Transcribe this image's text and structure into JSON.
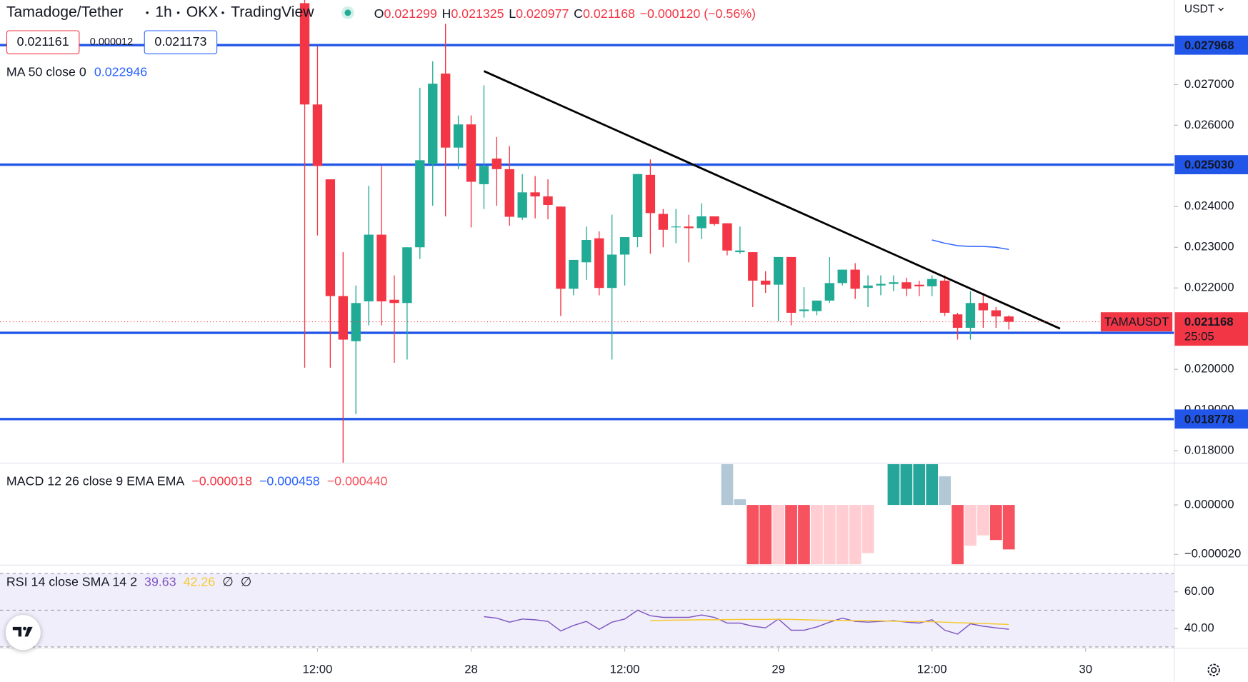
{
  "header": {
    "parts": [
      "Tamadoge/Tether",
      "1h",
      "OKX",
      "TradingView"
    ],
    "bid": 0.021161,
    "spread": 1.2e-05,
    "ask": 0.021173,
    "currency": "USDT"
  },
  "chart_data": [
    {
      "type": "candlestick",
      "up_color": "#22ab94",
      "down_color": "#f23645",
      "legend_names": [
        "O",
        "H",
        "L",
        "C"
      ],
      "change": {
        "value": -0.00012,
        "label": "−0.000120 (−0.56%)"
      },
      "symbol_badge": "TAMAUSDT",
      "countdown": "25:05",
      "xlim": [
        -24.8,
        66.9
      ],
      "xticks": [
        {
          "value": 0,
          "label": "12:00"
        },
        {
          "value": 12,
          "label": "28"
        },
        {
          "value": 24,
          "label": "12:00"
        },
        {
          "value": 36,
          "label": "29"
        },
        {
          "value": 48,
          "label": "12:00"
        },
        {
          "value": 60,
          "label": "30"
        }
      ],
      "ylim": [
        0.017706,
        0.029078
      ],
      "yticks": [
        {
          "value": 0.027,
          "label": "0.027000"
        },
        {
          "value": 0.026,
          "label": "0.026000"
        },
        {
          "value": 0.024,
          "label": "0.024000"
        },
        {
          "value": 0.023,
          "label": "0.023000"
        },
        {
          "value": 0.022,
          "label": "0.022000"
        },
        {
          "value": 0.02,
          "label": "0.020000"
        },
        {
          "value": 0.019,
          "label": "0.019000"
        },
        {
          "value": 0.018,
          "label": "0.018000"
        }
      ],
      "levels": [
        0.027968,
        {
          "value": 0.02503,
          "label": "0.025030"
        },
        0.020896,
        0.018778
      ],
      "level_color": "#2156e8",
      "x": [
        -1,
        0,
        1,
        2,
        3,
        4,
        5,
        6,
        7,
        8,
        9,
        10,
        11,
        12,
        13,
        14,
        15,
        16,
        17,
        18,
        19,
        20,
        21,
        22,
        23,
        24,
        25,
        26,
        27,
        28,
        29,
        30,
        31,
        32,
        33,
        34,
        35,
        36,
        37,
        38,
        39,
        40,
        41,
        42,
        43,
        44,
        45,
        46,
        47,
        48,
        49,
        50,
        51,
        52,
        53,
        54
      ],
      "open": [
        0.029,
        0.02651,
        0.02467,
        0.0218,
        0.02069,
        0.02167,
        0.02331,
        0.02171,
        0.02163,
        0.023,
        0.02504,
        0.02727,
        0.02545,
        0.02602,
        0.02455,
        0.02518,
        0.02492,
        0.02373,
        0.02435,
        0.02425,
        0.024,
        0.02198,
        0.02263,
        0.02322,
        0.022,
        0.02282,
        0.02325,
        0.02478,
        0.02382,
        0.02349,
        0.02351,
        0.02347,
        0.02376,
        0.02359,
        0.02288,
        0.02288,
        0.02218,
        0.02208,
        0.02276,
        0.02143,
        0.02143,
        0.02169,
        0.02212,
        0.02245,
        0.022,
        0.02206,
        0.0221,
        0.02214,
        0.02208,
        0.02204,
        0.02218,
        0.02135,
        0.02102,
        0.02163,
        0.02145,
        0.021299
      ],
      "high": [
        0.0291,
        0.02794,
        0.02467,
        0.02288,
        0.02206,
        0.02451,
        0.025,
        0.02231,
        0.023,
        0.02692,
        0.02757,
        0.02849,
        0.02624,
        0.02624,
        0.02698,
        0.02571,
        0.02549,
        0.0248,
        0.02475,
        0.02467,
        0.024,
        0.02269,
        0.02351,
        0.02339,
        0.0238,
        0.02325,
        0.0248,
        0.02516,
        0.02394,
        0.02394,
        0.0238,
        0.02408,
        0.02376,
        0.02359,
        0.02351,
        0.02288,
        0.02241,
        0.02276,
        0.02276,
        0.02202,
        0.02169,
        0.02276,
        0.02245,
        0.02261,
        0.02231,
        0.02231,
        0.02231,
        0.02225,
        0.02218,
        0.02231,
        0.02231,
        0.02139,
        0.02192,
        0.02188,
        0.02153,
        0.021325
      ],
      "low": [
        0.02004,
        0.02329,
        0.02004,
        0.0177,
        0.0189,
        0.02108,
        0.02108,
        0.02016,
        0.02024,
        0.02271,
        0.02402,
        0.02376,
        0.02492,
        0.02349,
        0.02394,
        0.02402,
        0.02353,
        0.02367,
        0.02371,
        0.02369,
        0.02131,
        0.02182,
        0.0222,
        0.02182,
        0.02024,
        0.02206,
        0.023,
        0.02284,
        0.023,
        0.0231,
        0.02263,
        0.0232,
        0.02353,
        0.0228,
        0.02284,
        0.02153,
        0.02188,
        0.02118,
        0.02108,
        0.02127,
        0.02133,
        0.02163,
        0.02206,
        0.02173,
        0.02153,
        0.02182,
        0.02192,
        0.0218,
        0.0218,
        0.0218,
        0.02131,
        0.02073,
        0.02073,
        0.02102,
        0.02102,
        0.020977
      ],
      "close": [
        0.02651,
        0.025,
        0.0218,
        0.02073,
        0.02163,
        0.02331,
        0.02167,
        0.02163,
        0.023,
        0.02514,
        0.02702,
        0.02545,
        0.02602,
        0.02461,
        0.025,
        0.02492,
        0.02375,
        0.02435,
        0.02425,
        0.02404,
        0.02198,
        0.02269,
        0.02318,
        0.022,
        0.02282,
        0.02325,
        0.0248,
        0.02384,
        0.02343,
        0.02351,
        0.02347,
        0.02376,
        0.02357,
        0.02292,
        0.02292,
        0.02218,
        0.02208,
        0.02276,
        0.02139,
        0.02147,
        0.02169,
        0.02212,
        0.02245,
        0.02198,
        0.02206,
        0.0221,
        0.02214,
        0.02198,
        0.02204,
        0.02222,
        0.02139,
        0.02102,
        0.02163,
        0.02145,
        0.0213,
        0.021168
      ],
      "trendline": {
        "x": [
          13,
          58
        ],
        "values": [
          0.02733,
          0.021
        ],
        "color": "#000000"
      },
      "ma": {
        "name": "MA 50 close 0",
        "color": "#2962ff",
        "x": [
          48,
          49,
          50,
          51,
          52,
          53,
          54
        ],
        "values": [
          0.02318,
          0.0231,
          0.02304,
          0.02302,
          0.02302,
          0.023,
          0.022946
        ]
      }
    },
    {
      "type": "histogram",
      "name": "MACD 12 26 close 9 EMA EMA",
      "legend_values": [
        {
          "value": -1.8e-05,
          "label": "−0.000018"
        },
        {
          "value": -0.000458,
          "label": "−0.000458"
        },
        {
          "value": -0.00044,
          "label": "−0.000440"
        }
      ],
      "legend_colors": [
        "#f23645",
        "#2962ff",
        "#f7525f"
      ],
      "ylim": [
        -2.42e-05,
        1.68e-05
      ],
      "yticks": [
        {
          "value": 0,
          "label": "0.000000"
        },
        {
          "value": -2e-05,
          "label": "−0.000020"
        }
      ],
      "x": [
        32,
        33,
        34,
        35,
        36,
        37,
        38,
        39,
        40,
        41,
        42,
        43,
        44,
        45,
        46,
        47,
        48,
        49,
        50,
        51,
        52,
        53,
        54
      ],
      "values": [
        1.65e-05,
        2.3e-06,
        -2.4e-05,
        -2.4e-05,
        -2.4e-05,
        -2.4e-05,
        -2.4e-05,
        -2.4e-05,
        -2.4e-05,
        -2.4e-05,
        -2.4e-05,
        -1.95e-05,
        null,
        1.65e-05,
        1.65e-05,
        1.65e-05,
        1.65e-05,
        1.16e-05,
        -2.4e-05,
        -1.65e-05,
        -1.23e-05,
        -1.42e-05,
        -1.8e-05
      ],
      "colors": [
        "#b2c8d6",
        "#b2c8d6",
        "#f7525f",
        "#f7525f",
        "#ffcdd2",
        "#f7525f",
        "#f7525f",
        "#ffcdd2",
        "#ffcdd2",
        "#ffcdd2",
        "#ffcdd2",
        "#ffcdd2",
        null,
        "#26a69a",
        "#26a69a",
        "#26a69a",
        "#26a69a",
        "#b2c8d6",
        "#f7525f",
        "#ffcdd2",
        "#ffcdd2",
        "#f7525f",
        "#f7525f"
      ]
    },
    {
      "type": "line",
      "name": "RSI 14 close SMA 14 2",
      "extras": [
        "∅",
        "∅"
      ],
      "ylim": [
        29.6,
        70.4
      ],
      "yticks": [
        {
          "value": 60,
          "label": "60.00"
        },
        {
          "value": 40,
          "label": "40.00"
        }
      ],
      "bands": [
        70,
        50,
        30
      ],
      "band_fill": "#f1eefb",
      "series": [
        {
          "color": "#7e57c2",
          "x": [
            13,
            14,
            15,
            16,
            17,
            18,
            19,
            20,
            21,
            22,
            23,
            24,
            25,
            26,
            27,
            28,
            29,
            30,
            31,
            32,
            33,
            34,
            35,
            36,
            37,
            38,
            39,
            40,
            41,
            42,
            43,
            44,
            45,
            46,
            47,
            48,
            49,
            50,
            51,
            52,
            53,
            54
          ],
          "values": [
            46.5,
            45.7,
            43.5,
            45.2,
            44.8,
            43.9,
            38.7,
            41.7,
            43.9,
            39.6,
            43.5,
            45.2,
            50,
            47,
            46.1,
            46.1,
            46.1,
            47.4,
            46.1,
            43,
            43,
            41.3,
            40.4,
            45.2,
            39.1,
            39.1,
            40.9,
            43.5,
            45.7,
            43.9,
            43.5,
            43.9,
            44.3,
            43.5,
            43,
            44.8,
            39.1,
            37,
            42.6,
            41.3,
            40.4,
            39.63
          ]
        },
        {
          "color": "#f5c92f",
          "x": [
            26,
            27,
            28,
            29,
            30,
            31,
            32,
            33,
            34,
            35,
            36,
            37,
            38,
            39,
            40,
            41,
            42,
            43,
            44,
            45,
            46,
            47,
            48,
            49,
            50,
            51,
            52,
            53,
            54
          ],
          "values": [
            44.3,
            44.5,
            44.6,
            44.7,
            44.8,
            44.8,
            44.9,
            45.0,
            45.0,
            45.0,
            45.1,
            45.0,
            44.8,
            44.6,
            44.5,
            44.4,
            44.3,
            44.3,
            44.2,
            44.0,
            43.9,
            43.8,
            43.7,
            43.5,
            43.2,
            43.0,
            42.8,
            42.5,
            42.26
          ]
        }
      ]
    }
  ]
}
